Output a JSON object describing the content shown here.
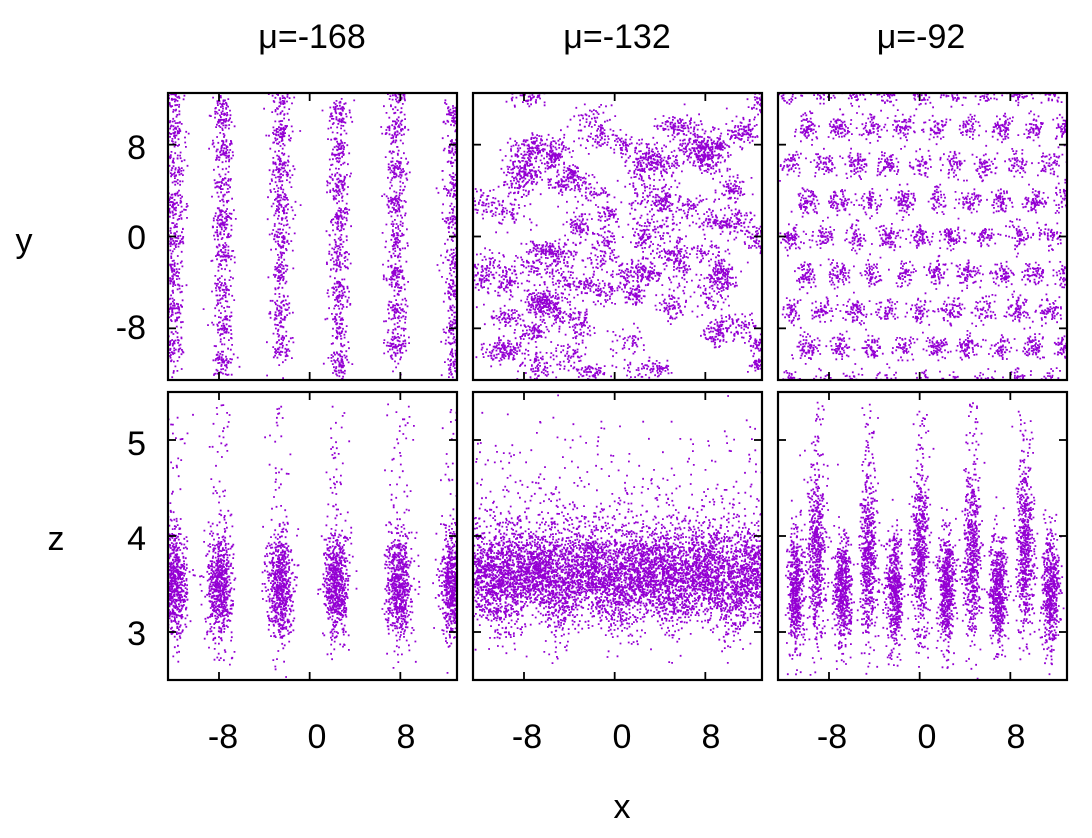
{
  "figure": {
    "column_titles": [
      "μ=-168",
      "μ=-132",
      "μ=-92"
    ],
    "xlabel": "x",
    "ylabel_top": "y",
    "ylabel_bottom": "z"
  },
  "chart_data": {
    "type": "scatter",
    "point_color": "#9400D3",
    "grid": false,
    "legend": "none",
    "xlim": [
      -12.5,
      13.0
    ],
    "xticks": [
      -8,
      0,
      8
    ],
    "xtick_labels": [
      "-8",
      "0",
      "8"
    ],
    "rows": [
      {
        "row": "top",
        "axes": [
          "x",
          "y"
        ],
        "ylim": [
          -12.5,
          12.5
        ],
        "yticks": [
          8,
          0,
          -8
        ],
        "ytick_labels": [
          "8",
          "0",
          "-8"
        ]
      },
      {
        "row": "bottom",
        "axes": [
          "x",
          "z"
        ],
        "ylim": [
          2.5,
          5.5
        ],
        "yticks": [
          5,
          4,
          3
        ],
        "ytick_labels": [
          "5",
          "4",
          "3"
        ]
      }
    ],
    "panels": [
      {
        "mu": -168,
        "xy_pattern": "vertical stripes of particle clusters",
        "xy_cluster_columns_x": [
          -12.0,
          -7.7,
          -2.6,
          2.5,
          7.6,
          12.7
        ],
        "xz_cluster_columns_x": [
          -12.0,
          -8.0,
          -2.7,
          2.3,
          7.8,
          12.6
        ],
        "xz_center_z": 3.5
      },
      {
        "mu": -132,
        "xy_pattern": "irregular disordered particle clusters",
        "xz_band_z": [
          3.2,
          4.2
        ],
        "xz_center_z": 3.65
      },
      {
        "mu": -92,
        "xy_pattern": "hexagonal lattice of particle clusters",
        "xz_cluster_columns_x": [
          -11,
          -9.2,
          -6.9,
          -4.6,
          -2.3,
          0,
          2.3,
          4.6,
          6.9,
          9.2,
          11.5
        ],
        "xz_center_z": [
          3.8,
          3.45
        ]
      }
    ]
  }
}
